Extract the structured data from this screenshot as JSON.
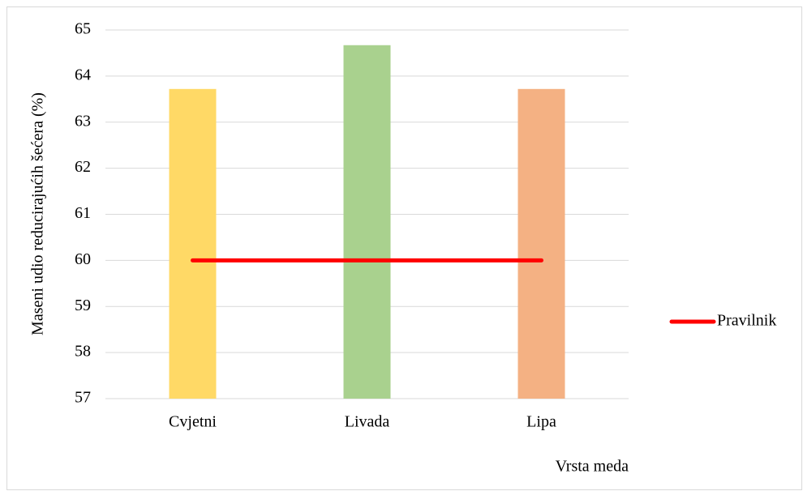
{
  "chart_data": {
    "type": "bar",
    "categories": [
      "Cvjetni",
      "Livada",
      "Lipa"
    ],
    "values": [
      63.72,
      64.67,
      63.72
    ],
    "colors": [
      "#ffd966",
      "#a9d18e",
      "#f4b183"
    ],
    "line_series": {
      "name": "Pravilnik",
      "color": "#ff0000",
      "values": [
        60,
        60,
        60
      ]
    },
    "y_label": "Maseni udio reducirajućih šećera (%)",
    "x_label": "Vrsta meda",
    "ylim": [
      57,
      65
    ],
    "yticks": [
      57,
      58,
      59,
      60,
      61,
      62,
      63,
      64,
      65
    ],
    "grid": true,
    "legend": "right"
  }
}
